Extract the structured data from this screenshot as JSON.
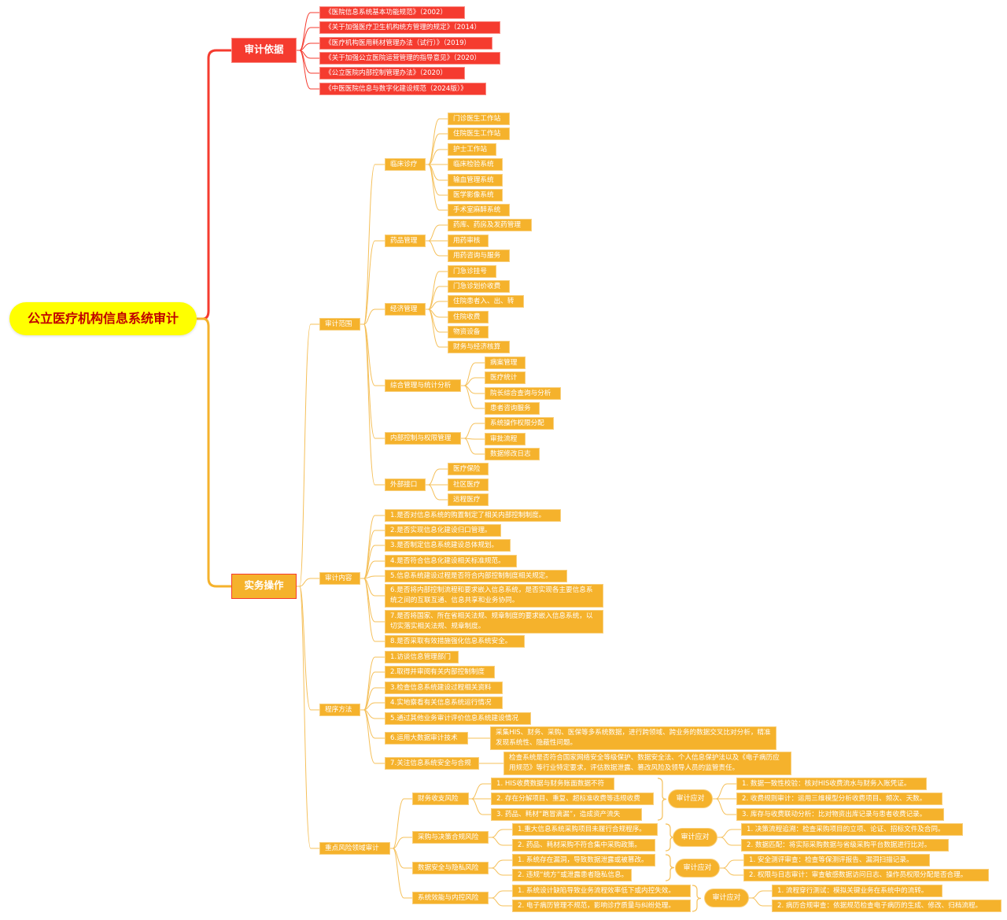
{
  "root": "公立医疗机构信息系统审计",
  "colors": {
    "basis": "#f53b2f",
    "practice": "#f5b22c",
    "root_fill": "#ffff00",
    "root_text": "#c00000",
    "link": "#f5c05a"
  },
  "basis": {
    "label": "审计依据",
    "items": [
      "《医院信息系统基本功能规范》（2002）",
      "《关于加强医疗卫生机构统方管理的规定》（2014）",
      "《医疗机构医用耗材管理办法（试行）》（2019）",
      "《关于加强公立医院运营管理的指导意见》（2020）",
      "《公立医院内部控制管理办法》（2020）",
      "《中医医院信息与数字化建设规范（2024版）》"
    ]
  },
  "practice": {
    "label": "实务操作",
    "scope": {
      "label": "审计范围",
      "groups": [
        {
          "label": "临床诊疗",
          "items": [
            "门诊医生工作站",
            "住院医生工作站",
            "护士工作站",
            "临床检验系统",
            "输血管理系统",
            "医学影像系统",
            "手术室麻醉系统"
          ]
        },
        {
          "label": "药品管理",
          "items": [
            "药库、药房及发药管理",
            "用药审核",
            "用药咨询与服务"
          ]
        },
        {
          "label": "经济管理",
          "items": [
            "门急诊挂号",
            "门急诊划价收费",
            "住院患者入、出、转",
            "住院收费",
            "物资设备",
            "财务与经济核算"
          ]
        },
        {
          "label": "综合管理与统计分析",
          "items": [
            "病案管理",
            "医疗统计",
            "院长综合查询与分析",
            "患者咨询服务"
          ]
        },
        {
          "label": "内部控制与权限管理",
          "items": [
            "系统操作权限分配",
            "审批流程",
            "数据修改日志"
          ]
        },
        {
          "label": "外部接口",
          "items": [
            "医疗保险",
            "社区医疗",
            "远程医疗"
          ]
        }
      ]
    },
    "content": {
      "label": "审计内容",
      "items": [
        "1.是否对信息系统的购置制定了相关内部控制制度。",
        "2.是否实现信息化建设归口管理。",
        "3.是否制定信息系统建设总体规划。",
        "4.是否符合信息化建设相关标准规范。",
        "5.信息系统建设过程是否符合内部控制制度相关规定。",
        "6.是否将内部控制流程和要求嵌入信息系统，是否实现各主要信息系统之间的互联互通、信息共享和业务协同。",
        "7.是否将国家、所在省相关法规、规章制度的要求嵌入信息系统，以切实落实相关法规、规章制度。",
        "8.是否采取有效措施强化信息系统安全。"
      ]
    },
    "methods": {
      "label": "程序方法",
      "items": [
        {
          "label": "1.访谈信息管理部门"
        },
        {
          "label": "2.取得并审阅有关内部控制制度"
        },
        {
          "label": "3.检查信息系统建设过程相关资料"
        },
        {
          "label": "4.实地察看有关信息系统运行情况"
        },
        {
          "label": "5.通过其他业务审计评价信息系统建设情况"
        },
        {
          "label": "6.运用大数据审计技术",
          "detail": "采集HIS、财务、采购、医保等多系统数据，进行跨领域、跨业务的数据交叉比对分析，精准发现系统性、隐蔽性问题。"
        },
        {
          "label": "7.关注信息系统安全与合规",
          "detail": "检查系统是否符合国家网络安全等级保护、数据安全法、个人信息保护法以及《电子病历应用规范》等行业特定要求，评估数据泄露、篡改风险及领导人员的监管责任。"
        }
      ]
    },
    "risks": {
      "label": "重点风险领域审计",
      "areas": [
        {
          "label": "财务收支风险",
          "response_label": "审计应对",
          "risks": [
            "1. HIS收费数据与财务账面数据不符",
            "2. 存在分解项目、重复、超标准收费等违规收费",
            "3. 药品、耗材“跑冒滴漏”，造成资产流失"
          ],
          "responses": [
            "1. 数据一致性校验：核对HIS收费流水与财务入账凭证。",
            "2. 收费规则审计：运用三维模型分析收费项目、频次、天数。",
            "3. 库存与收费联动分析：比对物资出库记录与患者收费记录。"
          ]
        },
        {
          "label": "采购与决策合规风险",
          "response_label": "审计应对",
          "risks": [
            "1.重大信息系统采购项目未履行合规程序。",
            "2. 药品、耗材采购不符合集中采购政策。"
          ],
          "responses": [
            "1. 决策流程追溯：检查采购项目的立项、论证、招标文件及合同。",
            "2. 数据匹配：将实际采购数据与省级采购平台数据进行比对。"
          ]
        },
        {
          "label": "数据安全与隐私风险",
          "response_label": "审计应对",
          "risks": [
            "1. 系统存在漏洞，导致数据泄露或被篡改。",
            "2. 违规“统方”或泄露患者隐私信息。"
          ],
          "responses": [
            "1. 安全测评审查：检查等保测评报告、漏洞扫描记录。",
            "2. 权限与日志审计：审查敏感数据访问日志、操作员权限分配是否合理。"
          ]
        },
        {
          "label": "系统效能与内控风险",
          "response_label": "审计应对",
          "risks": [
            "1. 系统设计缺陷导致业务流程效率低下或内控失效。",
            "2. 电子病历管理不规范，影响诊疗质量与纠纷处理。"
          ],
          "responses": [
            "1. 流程穿行测试：模拟关键业务在系统中的流转。",
            "2. 病历合规审查：依据规范检查电子病历的生成、修改、归档流程。"
          ]
        }
      ]
    }
  }
}
